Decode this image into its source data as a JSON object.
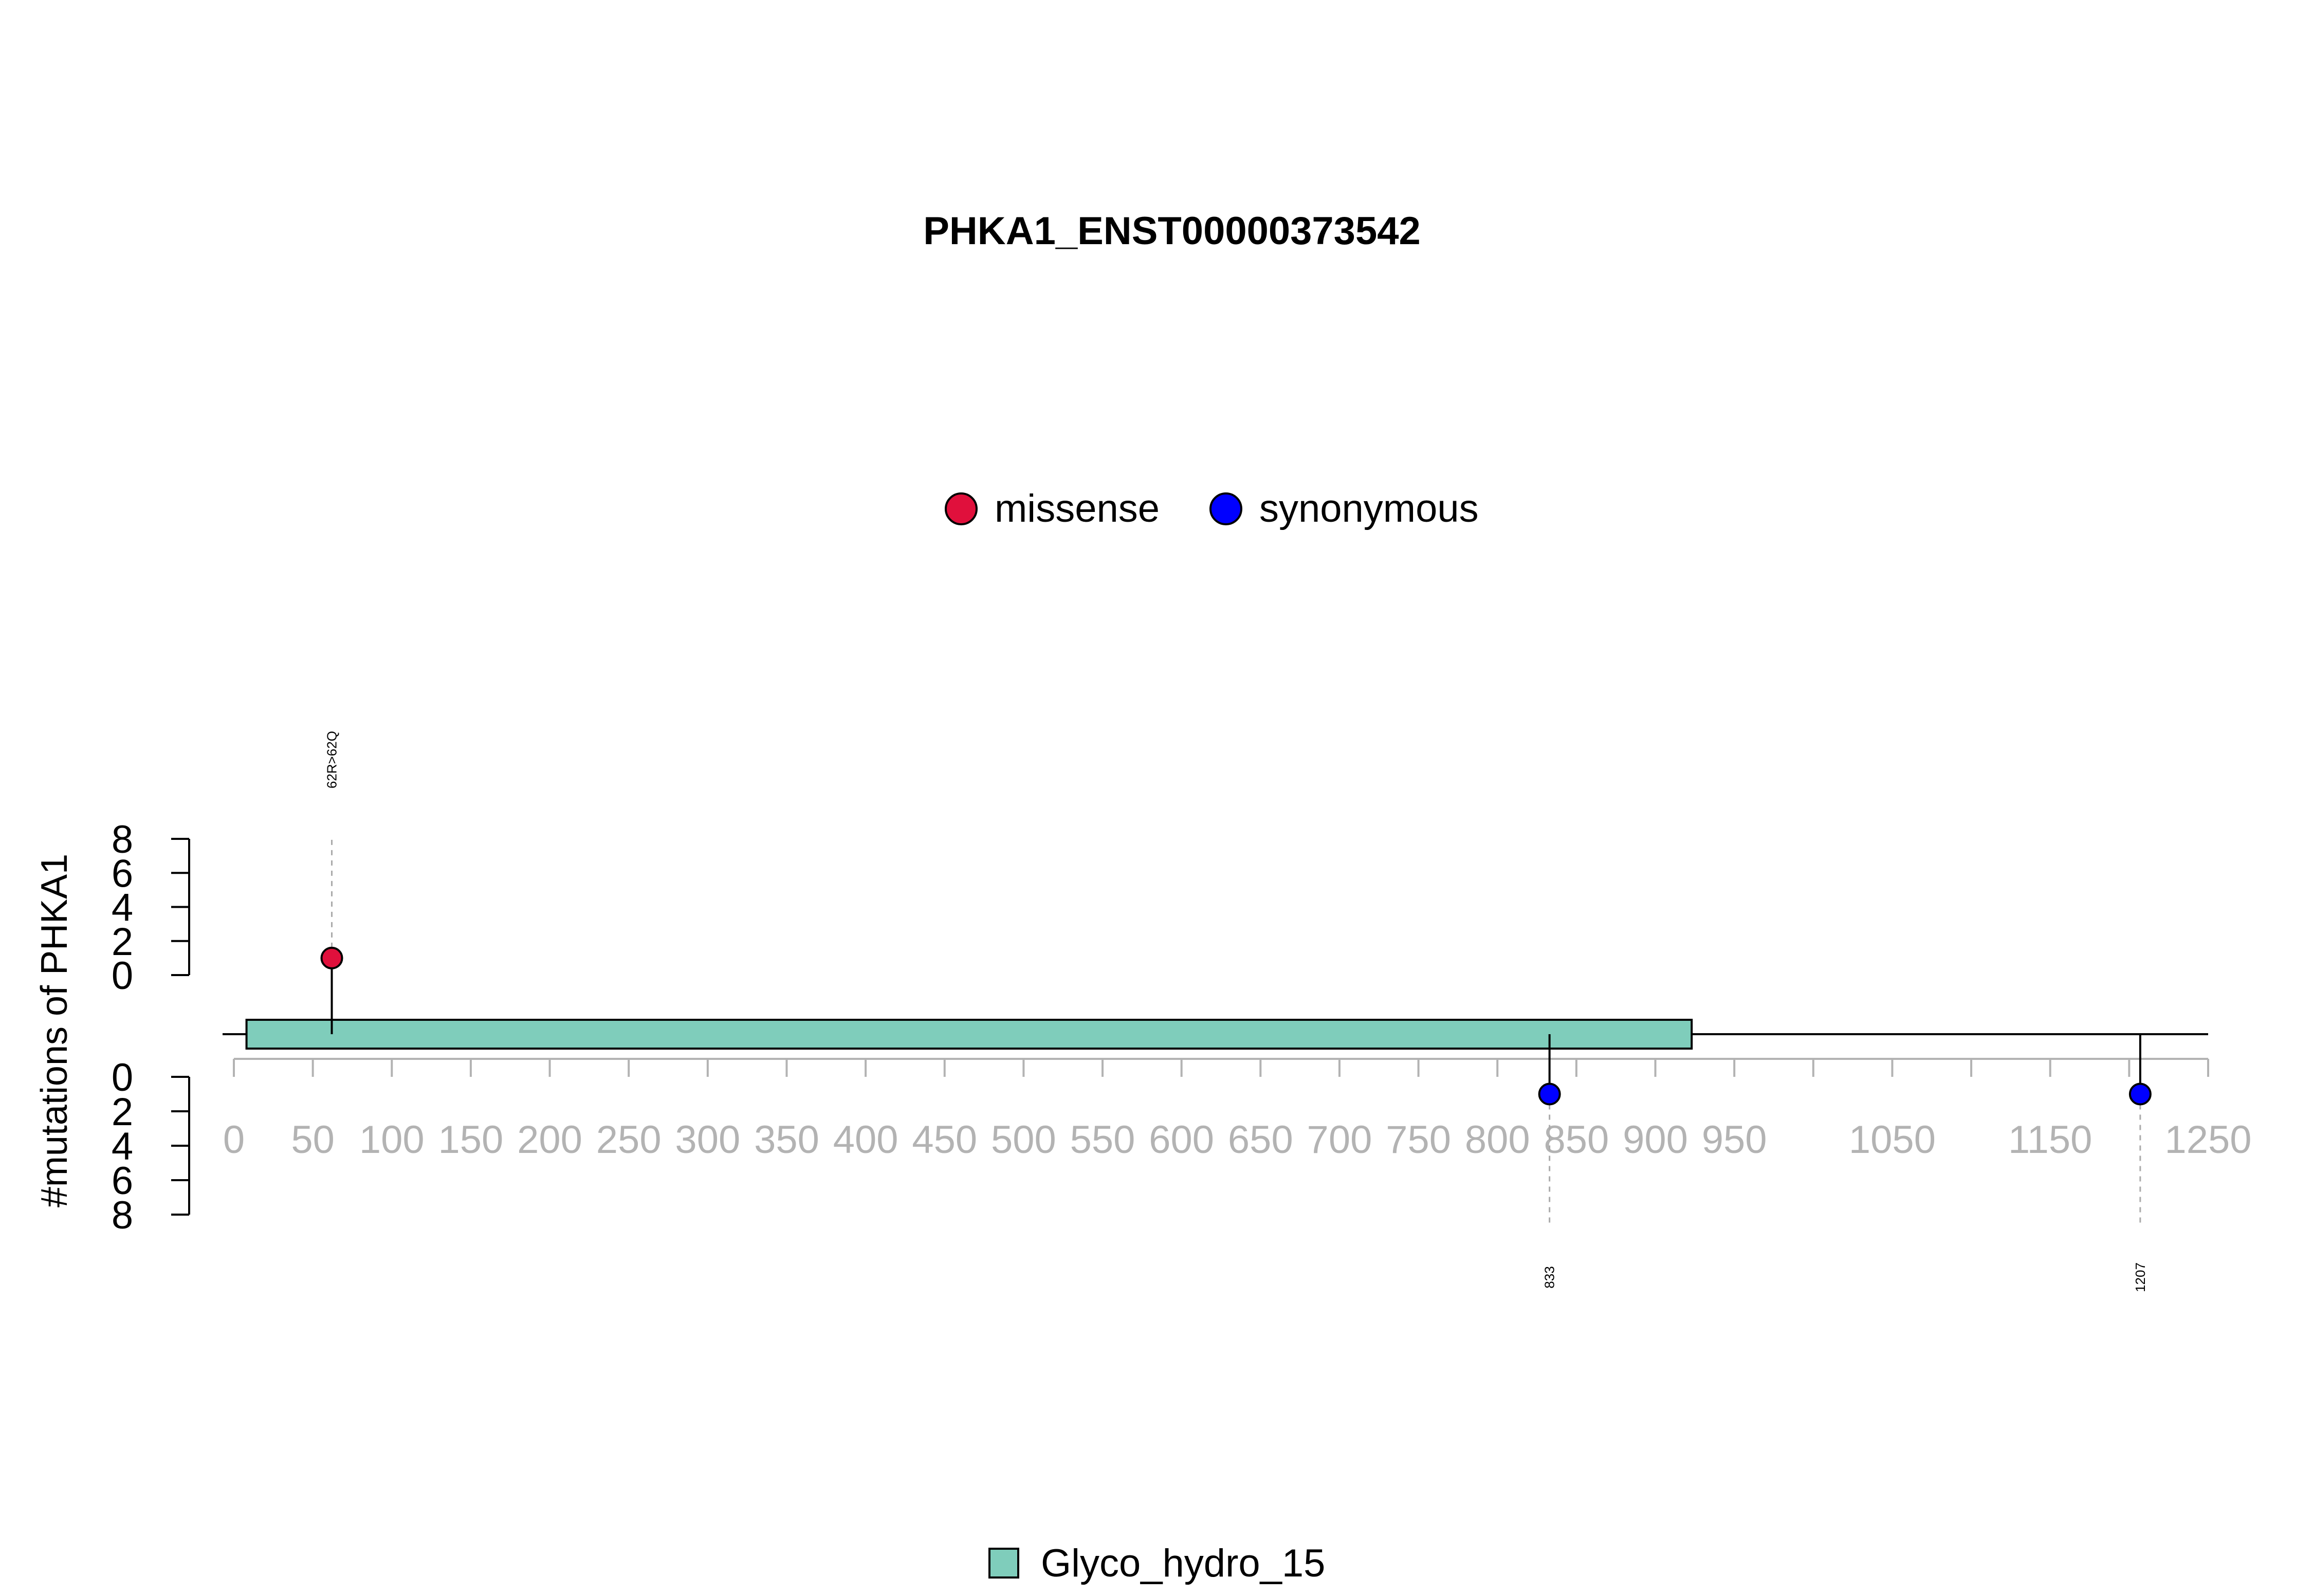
{
  "chart_data": {
    "type": "lollipop",
    "title": "PHKA1_ENST00000373542",
    "ylabel": "#mutations of PHKA1",
    "legend": {
      "position": "top-center",
      "items": [
        {
          "name": "missense",
          "color": "#E0103C"
        },
        {
          "name": "synonymous",
          "color": "#0000FF"
        }
      ]
    },
    "domain_legend": {
      "position": "bottom-center",
      "items": [
        {
          "name": "Glyco_hydro_15",
          "color": "#7FCDBB"
        }
      ]
    },
    "xlim": [
      0,
      1250
    ],
    "x_ticks": [
      0,
      50,
      100,
      150,
      200,
      250,
      300,
      350,
      400,
      450,
      500,
      550,
      600,
      650,
      700,
      750,
      800,
      850,
      900,
      950,
      1050,
      1150,
      1250
    ],
    "x_minor_ticks": [
      1000,
      1100,
      1200
    ],
    "protein_length": 1250,
    "domains": [
      {
        "name": "Glyco_hydro_15",
        "start": 8,
        "end": 923,
        "color": "#7FCDBB"
      }
    ],
    "ylim_top": [
      0,
      8
    ],
    "yticks_top": [
      0,
      2,
      4,
      6,
      8
    ],
    "ylim_bottom": [
      0,
      8
    ],
    "yticks_bottom": [
      0,
      2,
      4,
      6,
      8
    ],
    "mutations": [
      {
        "position": 62,
        "count": 1,
        "type": "missense",
        "label": "62R>62Q",
        "side": "top",
        "color": "#E0103C"
      },
      {
        "position": 833,
        "count": 1,
        "type": "synonymous",
        "label": "833",
        "side": "bottom",
        "color": "#0000FF"
      },
      {
        "position": 1207,
        "count": 1,
        "type": "synonymous",
        "label": "1207",
        "side": "bottom",
        "color": "#0000FF"
      }
    ]
  }
}
